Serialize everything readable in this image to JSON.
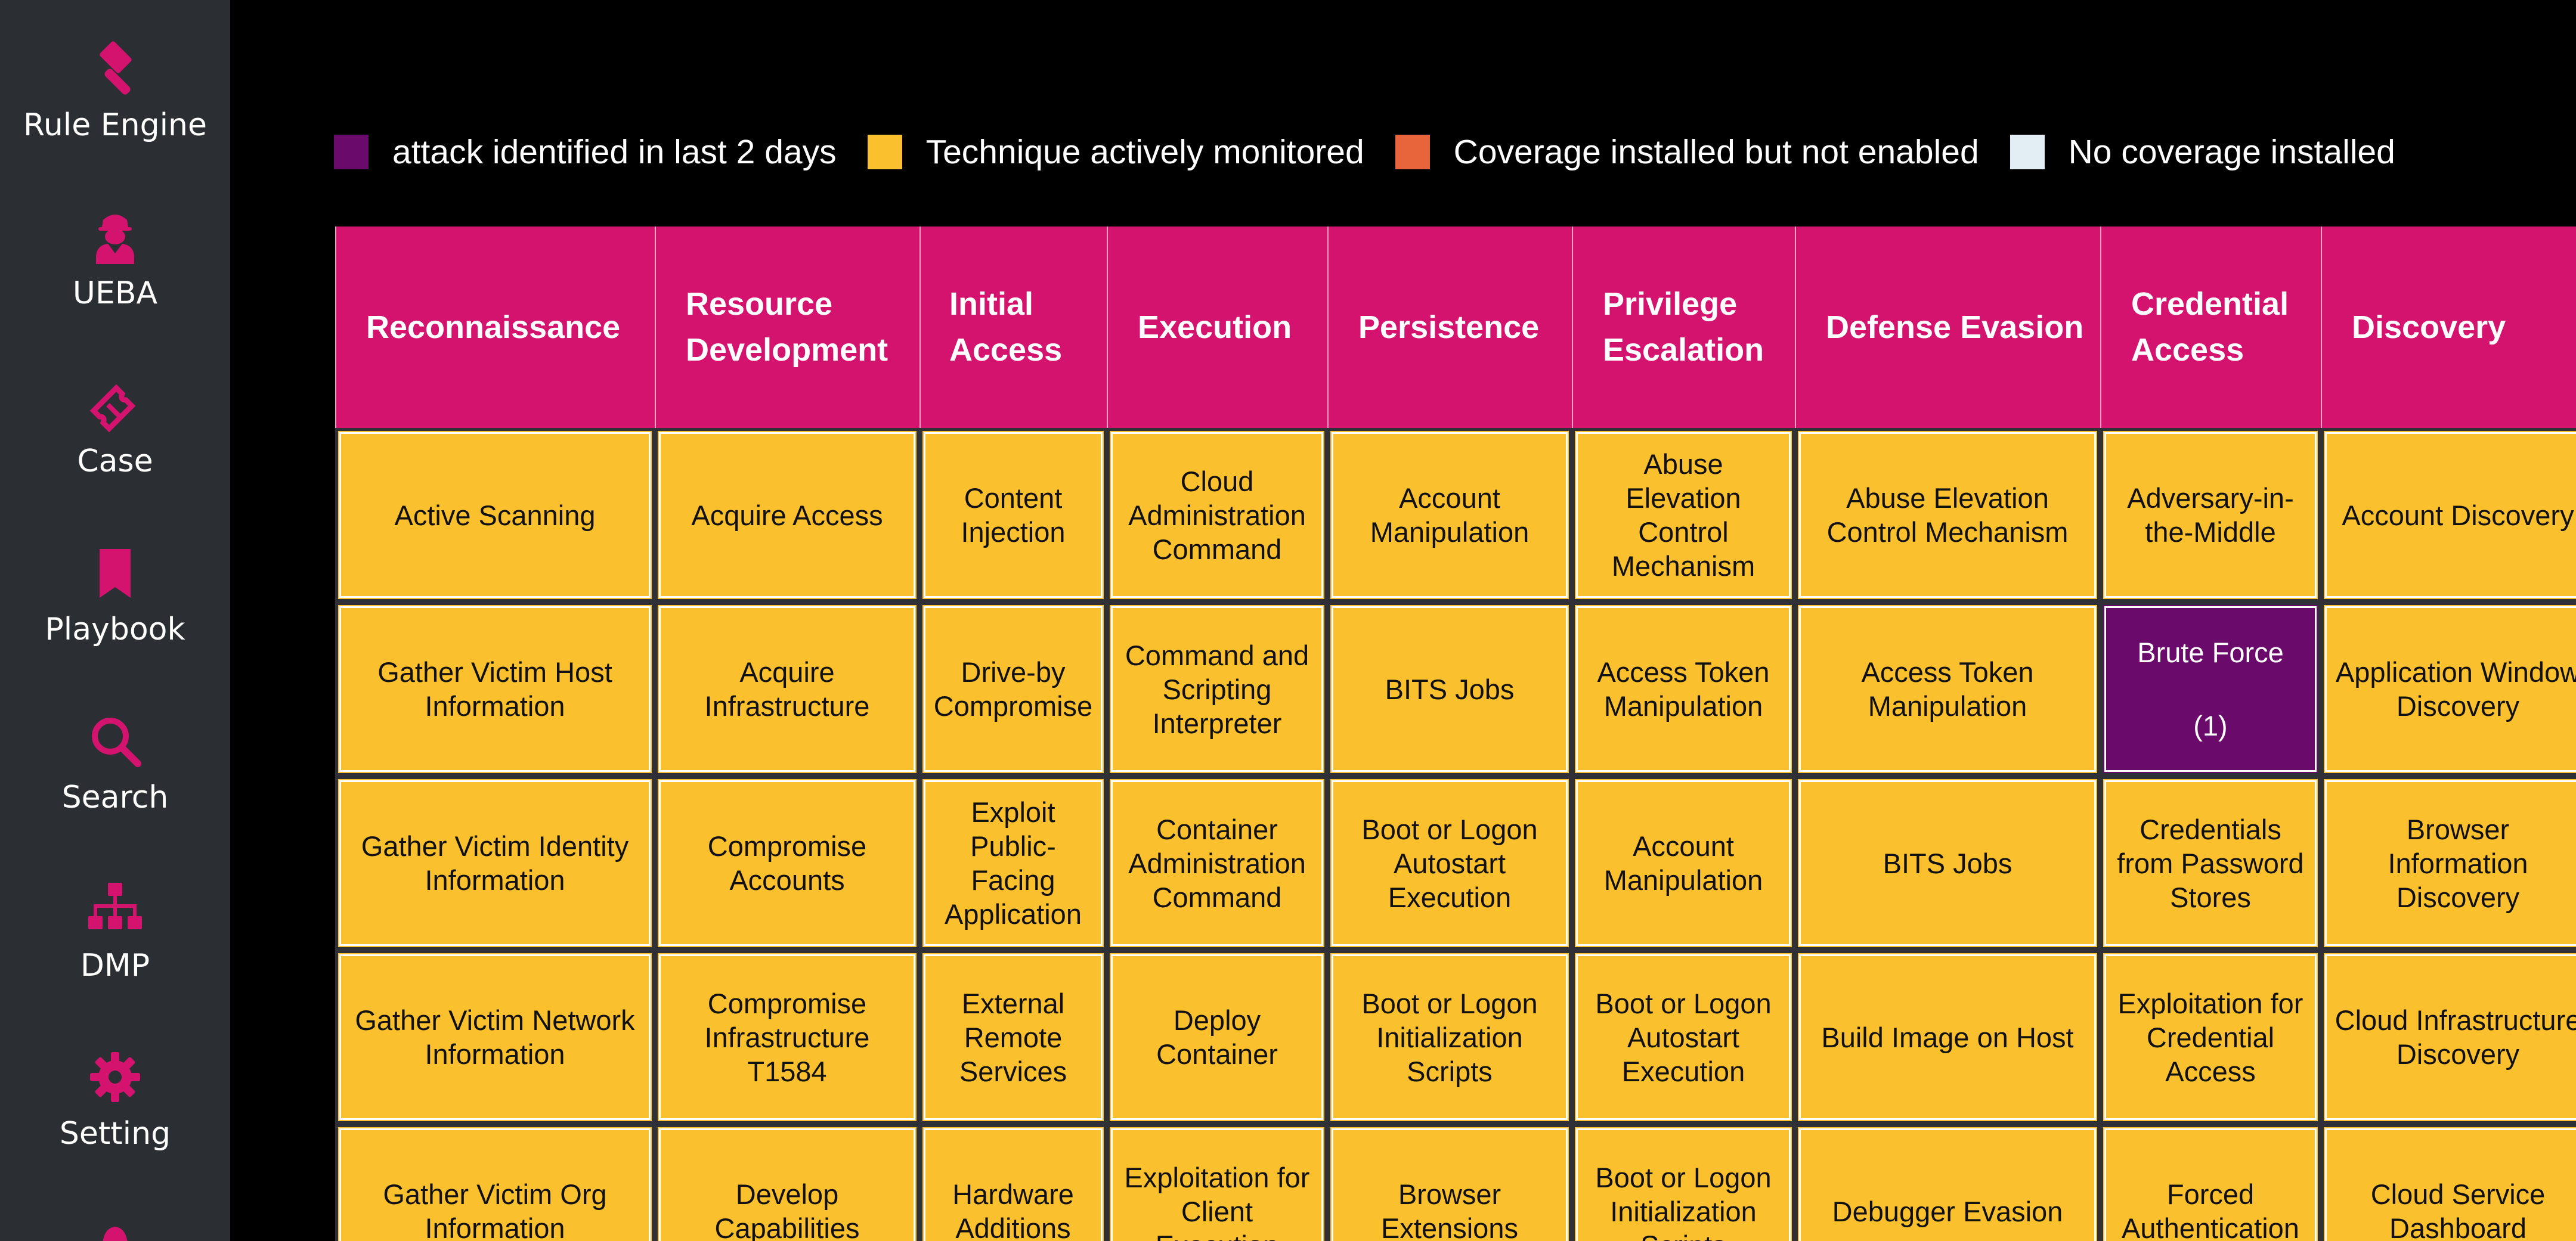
{
  "sidebar": {
    "items": [
      {
        "label": "Rule Engine",
        "icon": "gavel-icon"
      },
      {
        "label": "UEBA",
        "icon": "user-secret-icon"
      },
      {
        "label": "Case",
        "icon": "ticket-icon"
      },
      {
        "label": "Playbook",
        "icon": "bookmark-icon"
      },
      {
        "label": "Search",
        "icon": "search-icon"
      },
      {
        "label": "DMP",
        "icon": "sitemap-icon"
      },
      {
        "label": "Setting",
        "icon": "gear-icon"
      }
    ],
    "icon_color": "#d4136f"
  },
  "legend": [
    {
      "label": "attack identified in last 2 days",
      "color": "#6a0a6a"
    },
    {
      "label": "Technique actively monitored",
      "color": "#fbc02d"
    },
    {
      "label": "Coverage installed but not enabled",
      "color": "#e8643a"
    },
    {
      "label": "No coverage installed",
      "color": "#e3eef4"
    }
  ],
  "tactics": [
    {
      "name": "Reconnaissance",
      "techniques": [
        {
          "name": "Active Scanning"
        },
        {
          "name": "Gather Victim Host Information"
        },
        {
          "name": "Gather Victim Identity Information"
        },
        {
          "name": "Gather Victim Network Information"
        },
        {
          "name": "Gather Victim Org Information"
        }
      ]
    },
    {
      "name": "Resource Development",
      "techniques": [
        {
          "name": "Acquire Access"
        },
        {
          "name": "Acquire Infrastructure"
        },
        {
          "name": "Compromise Accounts"
        },
        {
          "name": "Compromise Infrastructure T1584"
        },
        {
          "name": "Develop Capabilities"
        }
      ]
    },
    {
      "name": "Initial Access",
      "techniques": [
        {
          "name": "Content Injection"
        },
        {
          "name": "Drive-by Compromise"
        },
        {
          "name": "Exploit Public-Facing Application"
        },
        {
          "name": "External Remote Services"
        },
        {
          "name": "Hardware Additions"
        }
      ]
    },
    {
      "name": "Execution",
      "techniques": [
        {
          "name": "Cloud Administration Command"
        },
        {
          "name": "Command and Scripting Interpreter"
        },
        {
          "name": "Container Administration Command"
        },
        {
          "name": "Deploy Container"
        },
        {
          "name": "Exploitation for Client Execution"
        }
      ]
    },
    {
      "name": "Persistence",
      "techniques": [
        {
          "name": "Account Manipulation"
        },
        {
          "name": "BITS Jobs"
        },
        {
          "name": "Boot or Logon Autostart Execution"
        },
        {
          "name": "Boot or Logon Initialization Scripts"
        },
        {
          "name": "Browser Extensions"
        }
      ]
    },
    {
      "name": "Privilege Escalation",
      "techniques": [
        {
          "name": "Abuse Elevation Control Mechanism"
        },
        {
          "name": "Access Token Manipulation"
        },
        {
          "name": "Account Manipulation"
        },
        {
          "name": "Boot or Logon Autostart Execution"
        },
        {
          "name": "Boot or Logon Initialization Scripts"
        }
      ]
    },
    {
      "name": "Defense Evasion",
      "techniques": [
        {
          "name": "Abuse Elevation Control Mechanism"
        },
        {
          "name": "Access Token Manipulation"
        },
        {
          "name": "BITS Jobs"
        },
        {
          "name": "Build Image on Host"
        },
        {
          "name": "Debugger Evasion"
        }
      ]
    },
    {
      "name": "Credential Access",
      "techniques": [
        {
          "name": "Adversary-in-the-Middle"
        },
        {
          "name": "Brute Force",
          "count": "(1)",
          "status": "attack"
        },
        {
          "name": "Credentials from Password Stores"
        },
        {
          "name": "Exploitation for Credential Access"
        },
        {
          "name": "Forced Authentication"
        }
      ]
    },
    {
      "name": "Discovery",
      "techniques": [
        {
          "name": "Account Discovery"
        },
        {
          "name": "Application Window Discovery"
        },
        {
          "name": "Browser Information Discovery"
        },
        {
          "name": "Cloud Infrastructure Discovery"
        },
        {
          "name": "Cloud Service Dashboard"
        }
      ]
    }
  ]
}
